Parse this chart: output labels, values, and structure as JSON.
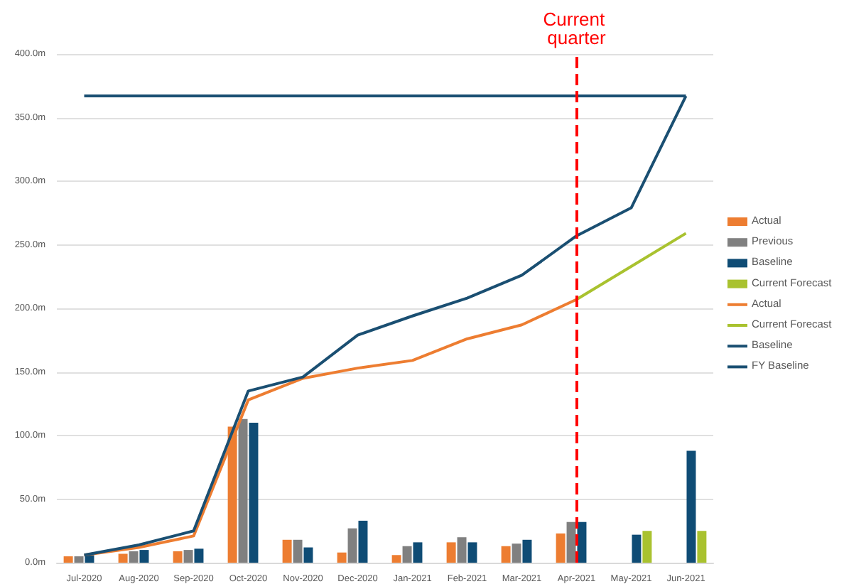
{
  "chart_data": {
    "type": "bar",
    "categories": [
      "Jul-2020",
      "Aug-2020",
      "Sep-2020",
      "Oct-2020",
      "Nov-2020",
      "Dec-2020",
      "Jan-2021",
      "Feb-2021",
      "Mar-2021",
      "Apr-2021",
      "May-2021",
      "Jun-2021"
    ],
    "series": [
      {
        "name": "Actual",
        "color": "#ed7d31",
        "values": [
          5,
          7,
          9,
          107,
          18,
          8,
          6,
          16,
          13,
          23,
          null,
          null
        ]
      },
      {
        "name": "Previous",
        "color": "#808080",
        "values": [
          5,
          9,
          10,
          113,
          18,
          27,
          13,
          20,
          15,
          32,
          null,
          null
        ]
      },
      {
        "name": "Baseline",
        "color": "#0f4c75",
        "values": [
          6,
          10,
          11,
          110,
          12,
          33,
          16,
          16,
          18,
          32,
          22,
          88
        ]
      },
      {
        "name": "Current Forecast",
        "color": "#a9c22f",
        "values": [
          null,
          null,
          null,
          null,
          null,
          null,
          null,
          null,
          null,
          null,
          25,
          25
        ]
      },
      {
        "name": "Actual",
        "type": "line",
        "color": "#ed7d31",
        "values": [
          6,
          12,
          21,
          128,
          145,
          153,
          159,
          176,
          187,
          207,
          null,
          null
        ]
      },
      {
        "name": "Current Forecast",
        "type": "line",
        "color": "#a9c22f",
        "values": [
          null,
          null,
          null,
          null,
          null,
          null,
          null,
          null,
          null,
          207,
          233,
          259
        ]
      },
      {
        "name": "Baseline",
        "type": "line",
        "color": "#1a4f72",
        "values": [
          6,
          14,
          25,
          135,
          146,
          179,
          194,
          208,
          226,
          257,
          279,
          367
        ]
      },
      {
        "name": "FY Baseline",
        "type": "line",
        "color": "#1a4f72",
        "values": [
          367,
          367,
          367,
          367,
          367,
          367,
          367,
          367,
          367,
          367,
          367,
          367
        ]
      }
    ],
    "ylim": [
      0,
      400
    ],
    "yticks": [
      {
        "value": 0,
        "label": "0.0m"
      },
      {
        "value": 50,
        "label": "50.0m"
      },
      {
        "value": 100,
        "label": "100.0m"
      },
      {
        "value": 150,
        "label": "150.0m"
      },
      {
        "value": 200,
        "label": "200.0m"
      },
      {
        "value": 250,
        "label": "250.0m"
      },
      {
        "value": 300,
        "label": "300.0m"
      },
      {
        "value": 350,
        "label": "350.0m"
      },
      {
        "value": 400,
        "label": "400.0m"
      }
    ],
    "ref_lines": [
      {
        "axis": "x",
        "value": "Apr-2021",
        "label": "Current quarter",
        "color": "#ff0000",
        "line_style": "dashed"
      }
    ],
    "grid": "y",
    "legend": "right",
    "marker": "none"
  }
}
